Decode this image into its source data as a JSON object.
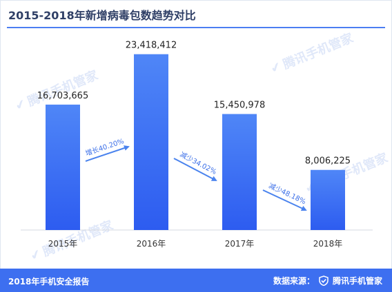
{
  "header": {
    "title": "2015-2018年新增病毒包数趋势对比"
  },
  "watermark": {
    "text": "腾讯手机管家",
    "icon": "shield-check-icon"
  },
  "footer": {
    "left_text": "2018年手机安全报告",
    "source_label": "数据来源：",
    "brand": "腾讯手机管家",
    "brand_icon": "shield-check-icon"
  },
  "colors": {
    "bar_top": "#4f86f7",
    "bar_bottom": "#2d5cf0",
    "arrow": "#4a83ee",
    "footer_bg": "#3d6ff0",
    "title": "#2f3f66"
  },
  "chart_data": {
    "type": "bar",
    "categories": [
      "2015年",
      "2016年",
      "2017年",
      "2018年"
    ],
    "values": [
      16703665,
      23418412,
      15450978,
      8006225
    ],
    "value_labels": [
      "16,703,665",
      "23,418,412",
      "15,450,978",
      "8,006,225"
    ],
    "annotations": [
      "增长40.20%",
      "减少34.02%",
      "减少48.18%"
    ],
    "title": "2015-2018年新增病毒包数趋势对比",
    "xlabel": "",
    "ylabel": "",
    "ylim": [
      0,
      25500000
    ],
    "grid": false,
    "legend": "none"
  }
}
